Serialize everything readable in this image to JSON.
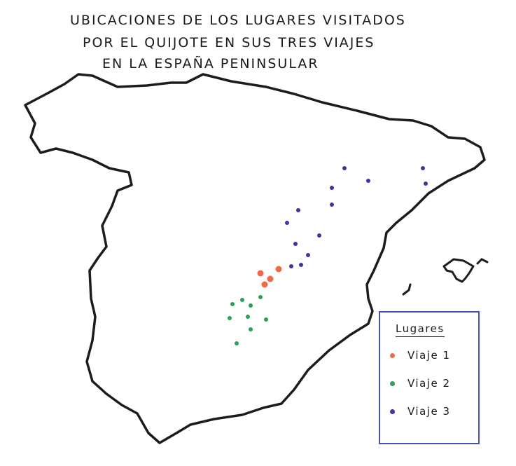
{
  "title": {
    "lines": [
      "Ubicaciones de los lugares visitados",
      "por el Quijote en sus tres viajes",
      "en la España peninsular"
    ]
  },
  "legend": {
    "title": "Lugares",
    "items": [
      {
        "label": "Viaje 1",
        "color": "#f06a4a"
      },
      {
        "label": "Viaje 2",
        "color": "#2e9e5e"
      },
      {
        "label": "Viaje 3",
        "color": "#3b36a8"
      }
    ]
  },
  "outline_color": "#1c1c1c",
  "map": {
    "region": "España peninsular",
    "islands": [
      "Mallorca",
      "Menorca",
      "Ibiza"
    ]
  }
}
